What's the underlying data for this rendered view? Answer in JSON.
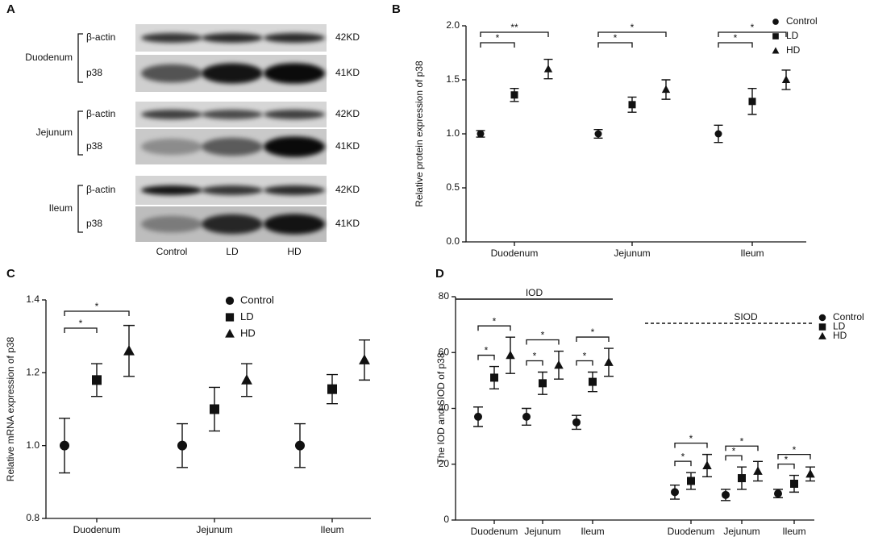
{
  "panel_a": {
    "label": "A",
    "tissues": [
      {
        "name": "Duodenum",
        "bands": [
          {
            "name": "β-actin",
            "size": "42KD"
          },
          {
            "name": "p38",
            "size": "41KD"
          }
        ]
      },
      {
        "name": "Jejunum",
        "bands": [
          {
            "name": "β-actin",
            "size": "42KD"
          },
          {
            "name": "p38",
            "size": "41KD"
          }
        ]
      },
      {
        "name": "Ileum",
        "bands": [
          {
            "name": "β-actin",
            "size": "42KD"
          },
          {
            "name": "p38",
            "size": "41KD"
          }
        ]
      }
    ],
    "lanes": [
      "Control",
      "LD",
      "HD"
    ]
  },
  "chart_data": [
    {
      "type": "dot",
      "label": "B",
      "ylabel": "Relative protein expression of p38",
      "categories": [
        "Duodenum",
        "Jejunum",
        "Ileum"
      ],
      "series": [
        {
          "name": "Control",
          "marker": "circle",
          "color": "#111111",
          "values": [
            1.0,
            1.0,
            1.0
          ],
          "errors": [
            0.03,
            0.04,
            0.08
          ]
        },
        {
          "name": "LD",
          "marker": "square",
          "color": "#111111",
          "values": [
            1.36,
            1.27,
            1.3
          ],
          "errors": [
            0.06,
            0.07,
            0.12
          ]
        },
        {
          "name": "HD",
          "marker": "triangle",
          "color": "#111111",
          "values": [
            1.6,
            1.41,
            1.5
          ],
          "errors": [
            0.09,
            0.09,
            0.09
          ]
        }
      ],
      "ylim": [
        0,
        2.0
      ],
      "yticks": [
        {
          "value": 0,
          "label": "0.0"
        },
        0.5,
        {
          "value": 1,
          "label": "1.0"
        },
        1.5,
        {
          "value": 2,
          "label": "2.0"
        }
      ],
      "annotations": [
        {
          "category": 0,
          "series": [
            0,
            1
          ],
          "label": "*"
        },
        {
          "category": 0,
          "series": [
            0,
            2
          ],
          "label": "**"
        },
        {
          "category": 1,
          "series": [
            0,
            1
          ],
          "label": "*"
        },
        {
          "category": 1,
          "series": [
            0,
            2
          ],
          "label": "*"
        },
        {
          "category": 2,
          "series": [
            0,
            1
          ],
          "label": "*"
        },
        {
          "category": 2,
          "series": [
            0,
            2
          ],
          "label": "*"
        }
      ]
    },
    {
      "type": "dot",
      "label": "C",
      "ylabel": "Relative mRNA expression of p38",
      "categories": [
        "Duodenum",
        "Jejunum",
        "Ileum"
      ],
      "series": [
        {
          "name": "Control",
          "marker": "circle",
          "color": "#111111",
          "values": [
            1.0,
            1.0,
            1.0
          ],
          "errors": [
            0.075,
            0.06,
            0.06
          ]
        },
        {
          "name": "LD",
          "marker": "square",
          "color": "#111111",
          "values": [
            1.18,
            1.1,
            1.155
          ],
          "errors": [
            0.045,
            0.06,
            0.04
          ]
        },
        {
          "name": "HD",
          "marker": "triangle",
          "color": "#111111",
          "values": [
            1.26,
            1.18,
            1.235
          ],
          "errors": [
            0.07,
            0.045,
            0.055
          ]
        }
      ],
      "ylim": [
        0.8,
        1.4
      ],
      "yticks": [
        0.8,
        {
          "value": 1,
          "label": "1.0"
        },
        1.2,
        1.4
      ],
      "annotations": [
        {
          "category": 0,
          "series": [
            0,
            1
          ],
          "label": "*"
        },
        {
          "category": 0,
          "series": [
            0,
            2
          ],
          "label": "*"
        }
      ]
    },
    {
      "type": "dot",
      "label": "D",
      "ylabel": "The IOD and SIOD of p38",
      "categories": [
        "Duodenum",
        "Jejunum",
        "Ileum",
        "Duodenum",
        "Jejunum",
        "Ileum"
      ],
      "groups": [
        {
          "label": "IOD",
          "line": "solid"
        },
        {
          "label": "SIOD",
          "line": "dashed"
        }
      ],
      "series": [
        {
          "name": "Control",
          "marker": "circle",
          "color": "#111111",
          "values": [
            37,
            37,
            35,
            10,
            9,
            9.5
          ],
          "errors": [
            3.5,
            3,
            2.5,
            2.5,
            2,
            1.5
          ]
        },
        {
          "name": "LD",
          "marker": "square",
          "color": "#111111",
          "values": [
            51,
            49,
            49.5,
            14,
            15,
            13
          ],
          "errors": [
            4,
            4,
            3.5,
            3,
            4,
            3
          ]
        },
        {
          "name": "HD",
          "marker": "triangle",
          "color": "#111111",
          "values": [
            59,
            55.5,
            56.5,
            19.5,
            17.5,
            16.5
          ],
          "errors": [
            6.5,
            5,
            5,
            4,
            3.5,
            2.5
          ]
        }
      ],
      "ylim": [
        0,
        80
      ],
      "yticks": [
        0,
        20,
        40,
        60,
        80
      ],
      "annotations": [
        {
          "category": 0,
          "series": [
            0,
            1
          ],
          "label": "*"
        },
        {
          "category": 0,
          "series": [
            0,
            2
          ],
          "label": "*"
        },
        {
          "category": 1,
          "series": [
            0,
            1
          ],
          "label": "*"
        },
        {
          "category": 1,
          "series": [
            0,
            2
          ],
          "label": "*"
        },
        {
          "category": 2,
          "series": [
            0,
            1
          ],
          "label": "*"
        },
        {
          "category": 2,
          "series": [
            0,
            2
          ],
          "label": "*"
        },
        {
          "category": 3,
          "series": [
            0,
            1
          ],
          "label": "*"
        },
        {
          "category": 3,
          "series": [
            0,
            2
          ],
          "label": "*"
        },
        {
          "category": 4,
          "series": [
            0,
            1
          ],
          "label": "*"
        },
        {
          "category": 4,
          "series": [
            0,
            2
          ],
          "label": "*"
        },
        {
          "category": 5,
          "series": [
            0,
            1
          ],
          "label": "*"
        },
        {
          "category": 5,
          "series": [
            0,
            2
          ],
          "label": "*"
        }
      ]
    }
  ]
}
